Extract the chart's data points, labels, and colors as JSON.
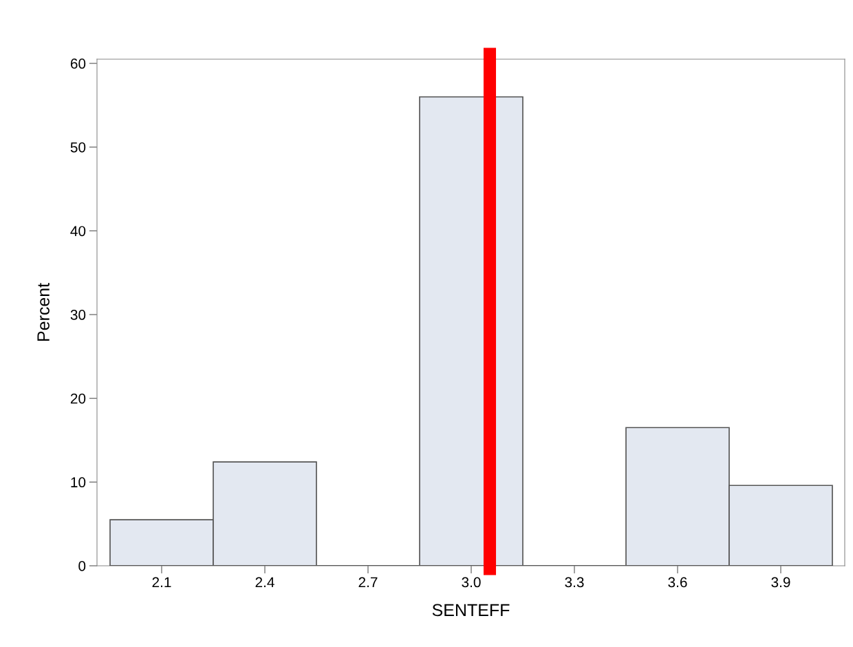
{
  "chart_data": {
    "type": "histogram",
    "xlabel": "SENTEFF",
    "ylabel": "Percent",
    "bins": [
      1.95,
      2.25,
      2.55,
      2.85,
      3.15,
      3.45,
      3.75,
      4.05
    ],
    "values": [
      5.5,
      12.4,
      0,
      56.0,
      0,
      16.5,
      9.6
    ],
    "color": "#e3e8f1",
    "xlim": [
      1.912,
      4.086
    ],
    "xticks": [
      {
        "value": 2.1,
        "label": "2.1"
      },
      {
        "value": 2.4,
        "label": "2.4"
      },
      {
        "value": 2.7,
        "label": "2.7"
      },
      {
        "value": 3.0,
        "label": "3.0"
      },
      {
        "value": 3.3,
        "label": "3.3"
      },
      {
        "value": 3.6,
        "label": "3.6"
      },
      {
        "value": 3.9,
        "label": "3.9"
      }
    ],
    "ylim": [
      0,
      60.5
    ],
    "yticks": [
      0,
      10,
      20,
      30,
      40,
      50,
      60
    ],
    "ref_lines": [
      {
        "axis": "x",
        "value": 3.054,
        "color": "#ff0000"
      }
    ],
    "grid": false,
    "legend": false
  }
}
